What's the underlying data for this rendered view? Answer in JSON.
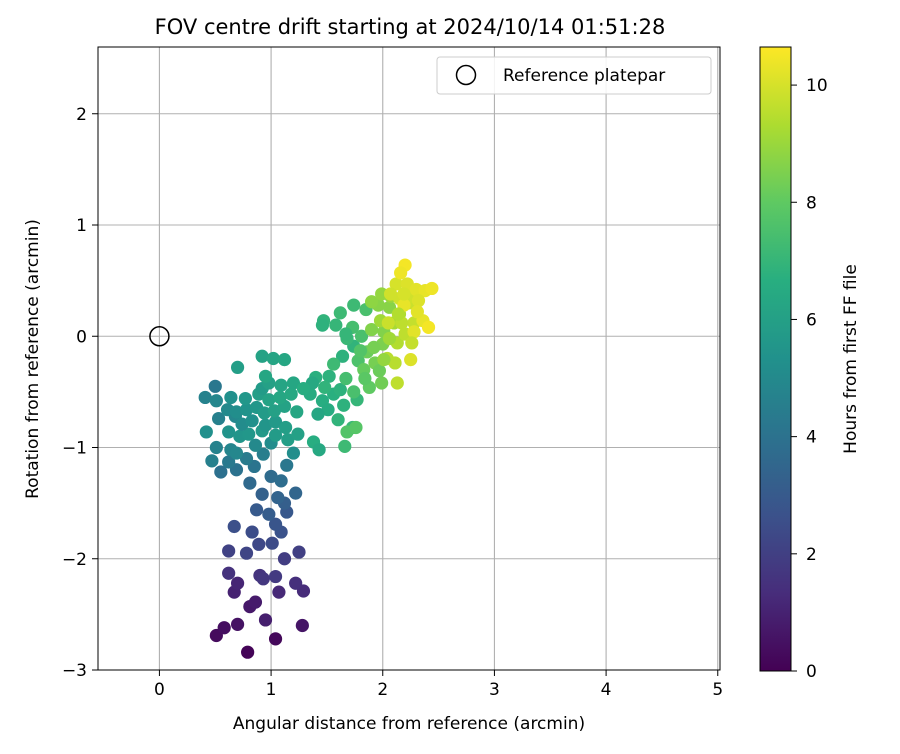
{
  "chart_data": {
    "type": "scatter",
    "title": "FOV centre drift starting at 2024/10/14 01:51:28",
    "xlabel": "Angular distance from reference (arcmin)",
    "ylabel": "Rotation from reference (arcmin)",
    "xlim": [
      -0.55,
      5.02
    ],
    "ylim": [
      -3.0,
      2.6
    ],
    "xticks": [
      0,
      1,
      2,
      3,
      4,
      5
    ],
    "xtick_labels": [
      "0",
      "1",
      "2",
      "3",
      "4",
      "5"
    ],
    "yticks": [
      -3,
      -2,
      -1,
      0,
      1,
      2
    ],
    "ytick_labels": [
      "−3",
      "−2",
      "−1",
      "0",
      "1",
      "2"
    ],
    "grid": true,
    "legend": {
      "position": "top-right",
      "entries": [
        "Reference platepar"
      ]
    },
    "reference_point": {
      "x": 0,
      "y": 0,
      "marker": "open-circle"
    },
    "colorbar": {
      "label": "Hours from first FF file",
      "colormap": "viridis",
      "range": [
        0,
        10.65
      ],
      "ticks": [
        0,
        2,
        4,
        6,
        8,
        10
      ],
      "tick_labels": [
        "0",
        "2",
        "4",
        "6",
        "8",
        "10"
      ]
    },
    "point_fields": [
      "x",
      "y",
      "hours"
    ],
    "points": [
      [
        0.79,
        -2.84,
        0.1
      ],
      [
        1.04,
        -2.72,
        0.2
      ],
      [
        0.51,
        -2.69,
        0.3
      ],
      [
        0.58,
        -2.62,
        0.4
      ],
      [
        0.7,
        -2.59,
        0.5
      ],
      [
        1.28,
        -2.6,
        0.6
      ],
      [
        0.81,
        -2.43,
        0.7
      ],
      [
        0.86,
        -2.39,
        0.8
      ],
      [
        0.95,
        -2.55,
        0.9
      ],
      [
        0.67,
        -2.3,
        1.0
      ],
      [
        0.7,
        -2.22,
        1.1
      ],
      [
        1.07,
        -2.3,
        1.2
      ],
      [
        1.29,
        -2.29,
        1.3
      ],
      [
        1.22,
        -2.22,
        1.4
      ],
      [
        0.62,
        -2.13,
        1.5
      ],
      [
        0.9,
        -2.15,
        1.6
      ],
      [
        0.93,
        -2.18,
        1.7
      ],
      [
        1.04,
        -2.16,
        1.8
      ],
      [
        1.12,
        -2.0,
        1.9
      ],
      [
        1.25,
        -1.94,
        2.0
      ],
      [
        0.62,
        -1.93,
        2.1
      ],
      [
        0.78,
        -1.95,
        2.2
      ],
      [
        0.89,
        -1.87,
        2.3
      ],
      [
        1.01,
        -1.86,
        2.4
      ],
      [
        0.83,
        -1.76,
        2.5
      ],
      [
        0.67,
        -1.71,
        2.6
      ],
      [
        1.09,
        -1.76,
        2.7
      ],
      [
        1.04,
        -1.69,
        2.8
      ],
      [
        1.14,
        -1.58,
        2.9
      ],
      [
        0.87,
        -1.56,
        3.0
      ],
      [
        0.98,
        -1.6,
        3.1
      ],
      [
        1.12,
        -1.5,
        3.2
      ],
      [
        0.92,
        -1.42,
        3.3
      ],
      [
        1.06,
        -1.45,
        3.4
      ],
      [
        1.22,
        -1.41,
        3.5
      ],
      [
        0.81,
        -1.32,
        3.6
      ],
      [
        1.0,
        -1.26,
        3.7
      ],
      [
        1.09,
        -1.3,
        3.8
      ],
      [
        0.55,
        -1.22,
        3.9
      ],
      [
        0.69,
        -1.2,
        4.0
      ],
      [
        0.85,
        -1.17,
        4.1
      ],
      [
        1.14,
        -1.16,
        4.2
      ],
      [
        0.62,
        -1.13,
        4.3
      ],
      [
        0.78,
        -1.1,
        4.4
      ],
      [
        0.93,
        -1.06,
        4.5
      ],
      [
        0.47,
        -1.12,
        4.6
      ],
      [
        0.51,
        -1.0,
        4.7
      ],
      [
        0.64,
        -1.02,
        4.8
      ],
      [
        0.69,
        -1.05,
        4.9
      ],
      [
        0.86,
        -0.98,
        5.0
      ],
      [
        1.0,
        -0.96,
        5.1
      ],
      [
        1.2,
        -1.05,
        5.2
      ],
      [
        0.42,
        -0.86,
        5.3
      ],
      [
        0.62,
        -0.86,
        5.4
      ],
      [
        0.72,
        -0.9,
        5.5
      ],
      [
        0.8,
        -0.88,
        5.6
      ],
      [
        0.92,
        -0.85,
        5.7
      ],
      [
        1.04,
        -0.89,
        5.8
      ],
      [
        1.15,
        -0.93,
        5.9
      ],
      [
        1.24,
        -0.88,
        6.0
      ],
      [
        0.53,
        -0.74,
        4.6
      ],
      [
        0.68,
        -0.72,
        4.9
      ],
      [
        0.74,
        -0.79,
        5.1
      ],
      [
        0.83,
        -0.76,
        5.3
      ],
      [
        0.95,
        -0.8,
        5.5
      ],
      [
        1.04,
        -0.77,
        5.7
      ],
      [
        1.13,
        -0.82,
        5.9
      ],
      [
        0.61,
        -0.66,
        5.0
      ],
      [
        0.69,
        -0.68,
        5.2
      ],
      [
        0.78,
        -0.66,
        5.4
      ],
      [
        0.87,
        -0.64,
        5.6
      ],
      [
        0.94,
        -0.69,
        5.8
      ],
      [
        1.03,
        -0.67,
        6.0
      ],
      [
        1.12,
        -0.63,
        6.1
      ],
      [
        1.23,
        -0.68,
        6.3
      ],
      [
        0.41,
        -0.55,
        4.7
      ],
      [
        0.51,
        -0.58,
        4.9
      ],
      [
        0.64,
        -0.55,
        5.3
      ],
      [
        0.77,
        -0.56,
        5.6
      ],
      [
        0.89,
        -0.52,
        5.9
      ],
      [
        0.98,
        -0.57,
        6.1
      ],
      [
        1.08,
        -0.55,
        6.3
      ],
      [
        1.18,
        -0.52,
        6.4
      ],
      [
        0.5,
        -0.45,
        4.2
      ],
      [
        0.92,
        -0.47,
        5.8
      ],
      [
        0.98,
        -0.42,
        6.0
      ],
      [
        1.09,
        -0.44,
        6.2
      ],
      [
        1.2,
        -0.42,
        6.3
      ],
      [
        0.7,
        -0.28,
        5.9
      ],
      [
        0.92,
        -0.18,
        6.1
      ],
      [
        1.02,
        -0.2,
        6.2
      ],
      [
        1.12,
        -0.21,
        6.3
      ],
      [
        0.95,
        -0.36,
        6.3
      ],
      [
        1.35,
        -0.52,
        6.5
      ],
      [
        1.46,
        -0.58,
        6.6
      ],
      [
        1.56,
        -0.52,
        6.7
      ],
      [
        1.62,
        -0.48,
        6.8
      ],
      [
        1.4,
        -0.37,
        6.7
      ],
      [
        1.52,
        -0.36,
        6.8
      ],
      [
        1.37,
        -0.42,
        6.4
      ],
      [
        1.29,
        -0.47,
        6.6
      ],
      [
        1.51,
        -0.66,
        6.5
      ],
      [
        1.42,
        -0.7,
        6.3
      ],
      [
        1.38,
        -0.95,
        6.6
      ],
      [
        1.43,
        -1.02,
        6.4
      ],
      [
        1.6,
        -0.75,
        6.9
      ],
      [
        1.65,
        -0.62,
        6.8
      ],
      [
        1.66,
        -0.99,
        7.2
      ],
      [
        1.73,
        -0.82,
        7.1
      ],
      [
        1.77,
        -0.57,
        7.0
      ],
      [
        1.48,
        -0.46,
        6.9
      ],
      [
        1.64,
        -0.18,
        6.8
      ],
      [
        1.74,
        -0.09,
        6.9
      ],
      [
        1.68,
        -0.02,
        7.1
      ],
      [
        1.58,
        0.1,
        7.0
      ],
      [
        1.47,
        0.14,
        6.9
      ],
      [
        1.46,
        0.1,
        6.8
      ],
      [
        1.56,
        -0.25,
        7.2
      ],
      [
        1.62,
        0.21,
        7.2
      ],
      [
        1.73,
        0.08,
        7.4
      ],
      [
        1.81,
        0.0,
        7.5
      ],
      [
        1.74,
        0.28,
        7.2
      ],
      [
        1.85,
        0.24,
        7.5
      ],
      [
        1.67,
        0.02,
        7.0
      ],
      [
        1.78,
        -0.22,
        7.6
      ],
      [
        1.67,
        -0.38,
        7.4
      ],
      [
        1.74,
        -0.5,
        7.5
      ],
      [
        1.68,
        -0.86,
        7.7
      ],
      [
        1.76,
        -0.82,
        7.8
      ],
      [
        1.88,
        -0.46,
        8.0
      ],
      [
        1.83,
        -0.3,
        8.1
      ],
      [
        1.86,
        -0.14,
        8.2
      ],
      [
        1.99,
        -0.42,
        8.3
      ],
      [
        1.93,
        -0.24,
        8.4
      ],
      [
        2.0,
        -0.07,
        8.5
      ],
      [
        1.9,
        0.06,
        8.6
      ],
      [
        2.01,
        0.04,
        8.6
      ],
      [
        1.96,
        0.28,
        8.7
      ],
      [
        2.06,
        0.26,
        8.7
      ],
      [
        1.9,
        0.31,
        8.8
      ],
      [
        1.99,
        0.38,
        8.9
      ],
      [
        2.07,
        0.36,
        9.0
      ],
      [
        1.98,
        0.14,
        9.1
      ],
      [
        2.1,
        0.12,
        9.2
      ],
      [
        2.15,
        0.2,
        9.3
      ],
      [
        2.13,
        -0.06,
        9.4
      ],
      [
        2.04,
        -0.2,
        9.5
      ],
      [
        2.11,
        -0.24,
        9.5
      ],
      [
        2.2,
        0.02,
        9.6
      ],
      [
        2.28,
        0.12,
        9.7
      ],
      [
        2.24,
        0.3,
        9.8
      ],
      [
        2.26,
        0.36,
        9.9
      ],
      [
        2.15,
        0.34,
        9.9
      ],
      [
        2.12,
        0.47,
        10.0
      ],
      [
        2.22,
        0.47,
        10.1
      ],
      [
        2.3,
        0.42,
        10.2
      ],
      [
        2.38,
        0.41,
        10.3
      ],
      [
        2.44,
        0.43,
        10.4
      ],
      [
        2.2,
        0.64,
        10.5
      ],
      [
        2.16,
        0.57,
        10.4
      ],
      [
        2.36,
        0.14,
        10.3
      ],
      [
        2.28,
        0.04,
        10.2
      ],
      [
        2.41,
        0.08,
        10.5
      ],
      [
        2.25,
        -0.21,
        10.1
      ],
      [
        2.13,
        -0.42,
        9.6
      ],
      [
        2.19,
        0.28,
        10.3
      ],
      [
        2.32,
        0.32,
        10.1
      ],
      [
        2.05,
        0.12,
        9.8
      ],
      [
        1.92,
        -0.1,
        8.4
      ],
      [
        1.97,
        -0.31,
        8.2
      ],
      [
        1.84,
        -0.38,
        7.9
      ],
      [
        1.8,
        -0.13,
        7.7
      ],
      [
        2.01,
        -0.21,
        8.9
      ],
      [
        2.06,
        -0.02,
        9.1
      ],
      [
        2.17,
        0.12,
        9.6
      ],
      [
        2.07,
        0.38,
        9.9
      ],
      [
        2.19,
        0.38,
        10.0
      ],
      [
        2.31,
        0.22,
        10.2
      ],
      [
        2.26,
        -0.06,
        9.7
      ],
      [
        2.14,
        0.2,
        9.4
      ]
    ]
  }
}
